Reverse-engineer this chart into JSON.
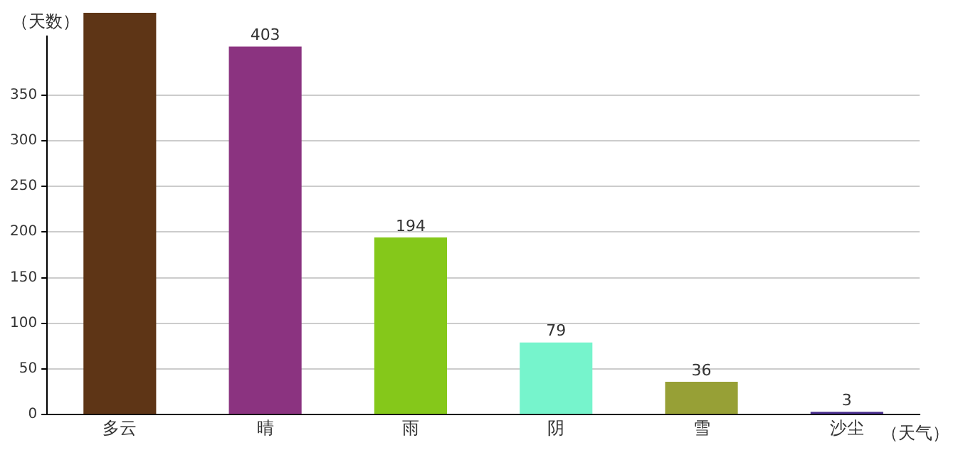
{
  "chart_data": {
    "type": "bar",
    "ylabel": "（天数）",
    "xlabel": "（天气）",
    "categories": [
      "多云",
      "晴",
      "雨",
      "阴",
      "雪",
      "沙尘"
    ],
    "values": [
      440,
      403,
      194,
      79,
      36,
      3
    ],
    "value_labels": [
      null,
      "403",
      "194",
      "79",
      "36",
      "3"
    ],
    "colors": [
      "#5e3516",
      "#8b3380",
      "#85c81a",
      "#76f4cc",
      "#97a036",
      "#4a2f8f"
    ],
    "ylim": [
      0,
      440
    ],
    "yticks": [
      0,
      50,
      100,
      150,
      200,
      250,
      300,
      350
    ],
    "grid": "y"
  }
}
